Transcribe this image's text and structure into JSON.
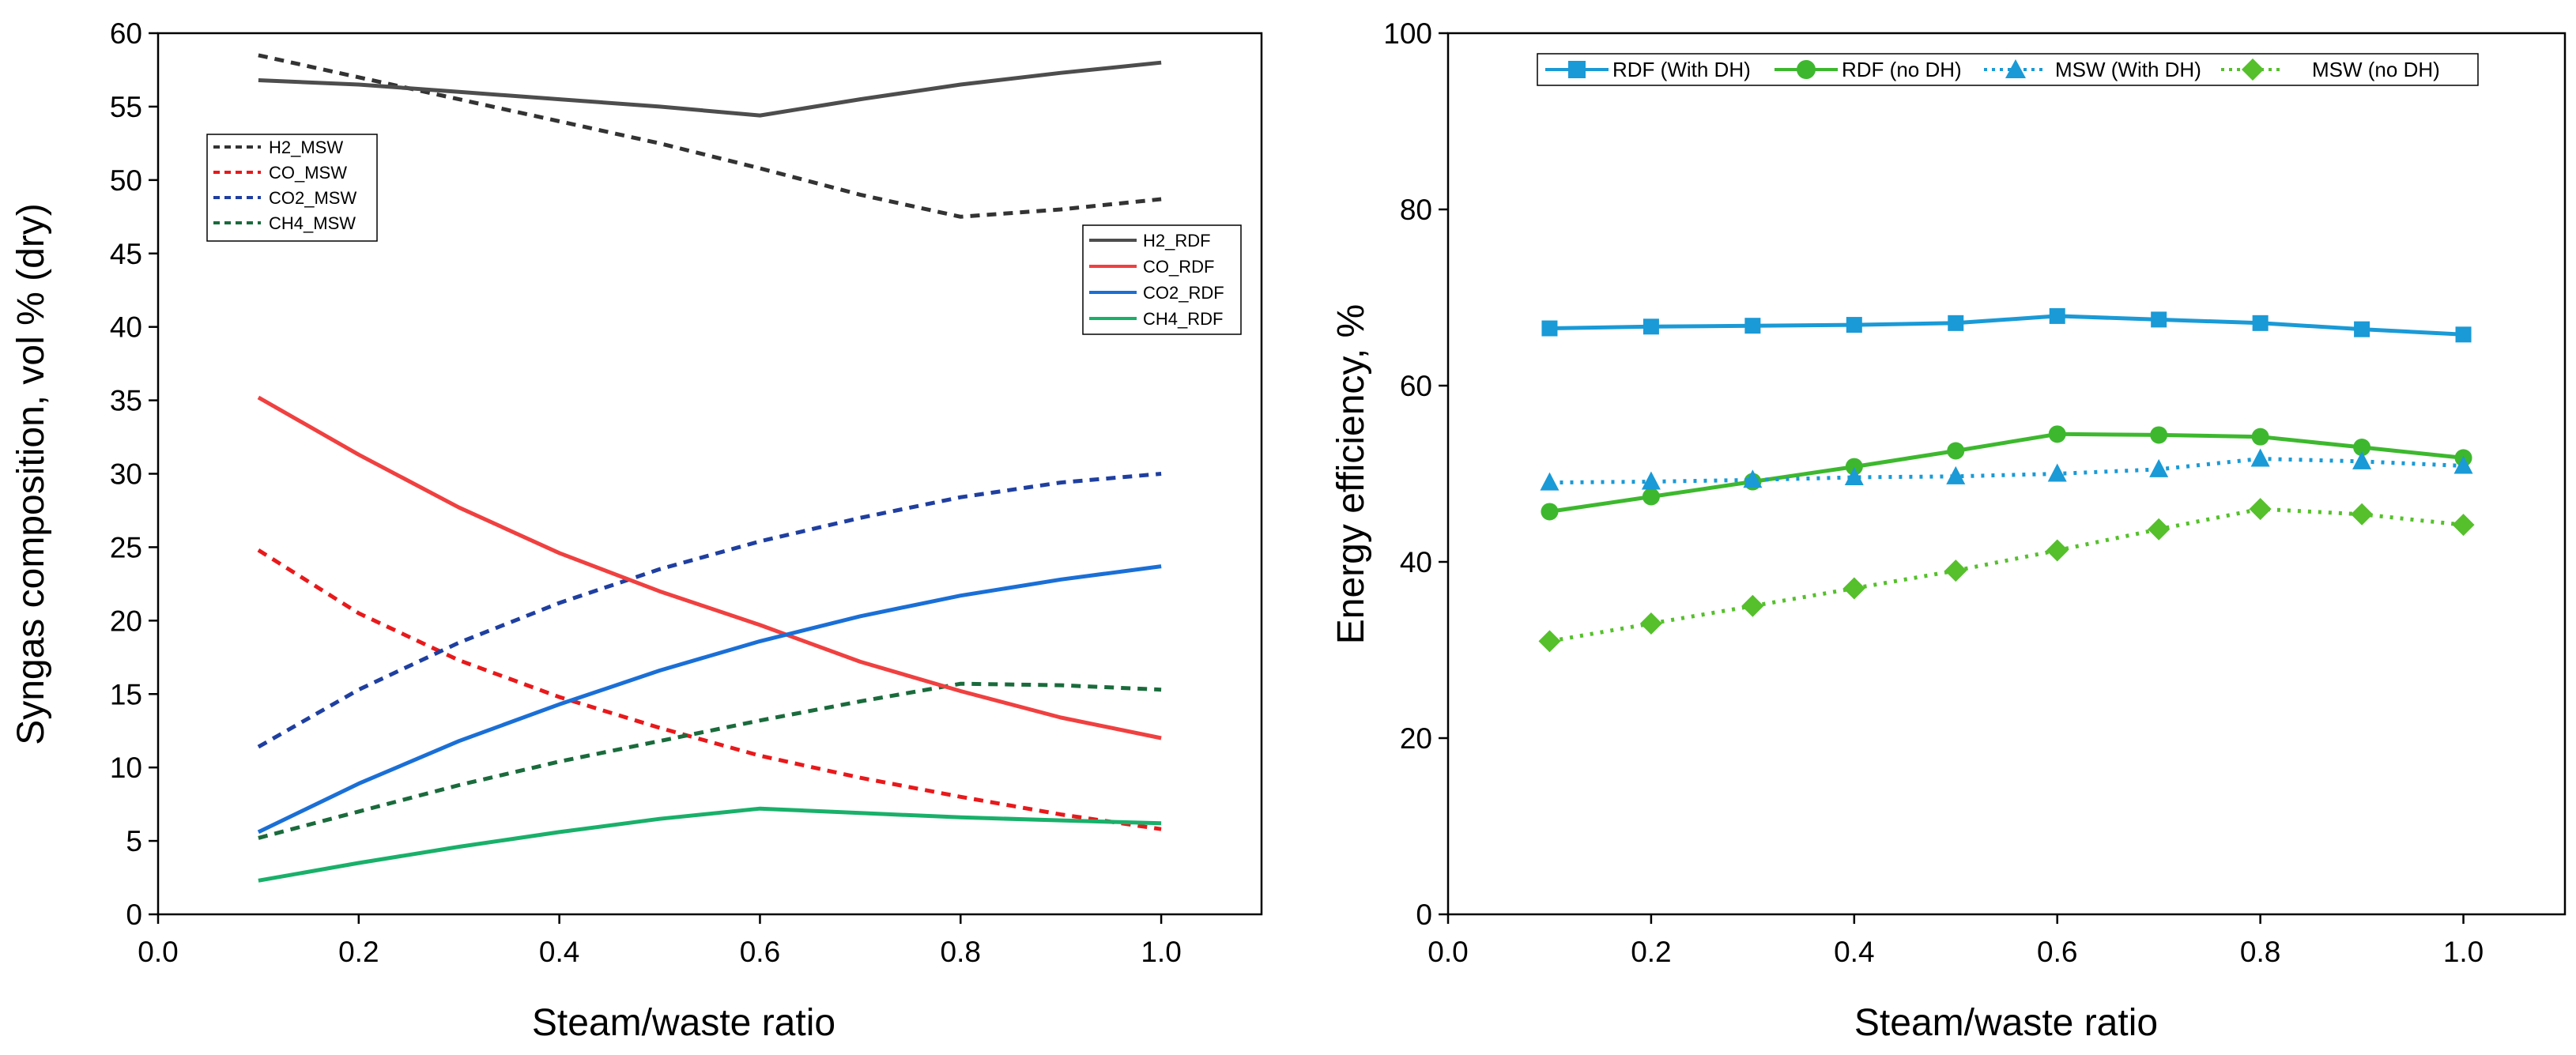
{
  "chart_data": [
    {
      "type": "line",
      "title": "",
      "xlabel": "Steam/waste ratio",
      "ylabel": "Syngas composition, vol % (dry)",
      "xlim": [
        0.0,
        1.1
      ],
      "ylim": [
        0,
        60
      ],
      "xticks": [
        "0.0",
        "0.2",
        "0.4",
        "0.6",
        "0.8",
        "1.0"
      ],
      "yticks": [
        "0",
        "5",
        "10",
        "15",
        "20",
        "25",
        "30",
        "35",
        "40",
        "45",
        "50",
        "55",
        "60"
      ],
      "grid": false,
      "legend_groups": [
        "left (upper-left)",
        "right (upper-right)"
      ],
      "series": [
        {
          "name": "H2_MSW",
          "color": "#333333",
          "dash": "dashed",
          "legend": "left",
          "x": [
            0.1,
            0.2,
            0.3,
            0.4,
            0.5,
            0.6,
            0.7,
            0.8,
            0.9,
            1.0
          ],
          "values": [
            58.5,
            57.0,
            55.5,
            54.0,
            52.5,
            50.8,
            49.0,
            47.5,
            48.0,
            48.7
          ]
        },
        {
          "name": "CO_MSW",
          "color": "#e8191b",
          "dash": "dashed",
          "legend": "left",
          "x": [
            0.1,
            0.2,
            0.3,
            0.4,
            0.5,
            0.6,
            0.7,
            0.8,
            0.9,
            1.0
          ],
          "values": [
            24.8,
            20.5,
            17.3,
            14.8,
            12.7,
            10.8,
            9.3,
            8.0,
            6.8,
            5.8
          ]
        },
        {
          "name": "CO2_MSW",
          "color": "#1f3fa0",
          "dash": "dashed",
          "legend": "left",
          "x": [
            0.1,
            0.2,
            0.3,
            0.4,
            0.5,
            0.6,
            0.7,
            0.8,
            0.9,
            1.0
          ],
          "values": [
            11.4,
            15.3,
            18.5,
            21.2,
            23.5,
            25.4,
            27.0,
            28.4,
            29.4,
            30.0
          ]
        },
        {
          "name": "CH4_MSW",
          "color": "#1a6b3c",
          "dash": "dashed",
          "legend": "left",
          "x": [
            0.1,
            0.2,
            0.3,
            0.4,
            0.5,
            0.6,
            0.7,
            0.8,
            0.9,
            1.0
          ],
          "values": [
            5.2,
            7.0,
            8.8,
            10.4,
            11.8,
            13.2,
            14.5,
            15.7,
            15.6,
            15.3
          ]
        },
        {
          "name": "H2_RDF",
          "color": "#4d4d4d",
          "dash": "solid",
          "legend": "right",
          "x": [
            0.1,
            0.2,
            0.3,
            0.4,
            0.5,
            0.6,
            0.7,
            0.8,
            0.9,
            1.0
          ],
          "values": [
            56.8,
            56.5,
            56.0,
            55.5,
            55.0,
            54.4,
            55.5,
            56.5,
            57.3,
            58.0
          ]
        },
        {
          "name": "CO_RDF",
          "color": "#f04040",
          "dash": "solid",
          "legend": "right",
          "x": [
            0.1,
            0.2,
            0.3,
            0.4,
            0.5,
            0.6,
            0.7,
            0.8,
            0.9,
            1.0
          ],
          "values": [
            35.2,
            31.3,
            27.7,
            24.6,
            22.0,
            19.7,
            17.2,
            15.2,
            13.4,
            12.0
          ]
        },
        {
          "name": "CO2_RDF",
          "color": "#1a6fd6",
          "dash": "solid",
          "legend": "right",
          "x": [
            0.1,
            0.2,
            0.3,
            0.4,
            0.5,
            0.6,
            0.7,
            0.8,
            0.9,
            1.0
          ],
          "values": [
            5.6,
            8.9,
            11.8,
            14.3,
            16.6,
            18.6,
            20.3,
            21.7,
            22.8,
            23.7
          ]
        },
        {
          "name": "CH4_RDF",
          "color": "#19b06a",
          "dash": "solid",
          "legend": "right",
          "x": [
            0.1,
            0.2,
            0.3,
            0.4,
            0.5,
            0.6,
            0.7,
            0.8,
            0.9,
            1.0
          ],
          "values": [
            2.3,
            3.5,
            4.6,
            5.6,
            6.5,
            7.2,
            6.9,
            6.6,
            6.4,
            6.2
          ]
        }
      ]
    },
    {
      "type": "line",
      "title": "",
      "xlabel": "Steam/waste ratio",
      "ylabel": "Energy efficiency, %",
      "xlim": [
        0.0,
        1.1
      ],
      "ylim": [
        0,
        100
      ],
      "xticks": [
        "0.0",
        "0.2",
        "0.4",
        "0.6",
        "0.8",
        "1.0"
      ],
      "yticks": [
        "0",
        "20",
        "40",
        "60",
        "80",
        "100"
      ],
      "grid": false,
      "legend_position": "top",
      "series": [
        {
          "name": "RDF (With DH)",
          "color": "#1a9ad6",
          "dash": "solid",
          "marker": "square",
          "x": [
            0.1,
            0.2,
            0.3,
            0.4,
            0.5,
            0.6,
            0.7,
            0.8,
            0.9,
            1.0
          ],
          "values": [
            66.5,
            66.7,
            66.8,
            66.9,
            67.1,
            67.9,
            67.5,
            67.1,
            66.4,
            65.8
          ]
        },
        {
          "name": "RDF (no DH)",
          "color": "#3db82e",
          "dash": "solid",
          "marker": "circle",
          "x": [
            0.1,
            0.2,
            0.3,
            0.4,
            0.5,
            0.6,
            0.7,
            0.8,
            0.9,
            1.0
          ],
          "values": [
            45.7,
            47.4,
            49.1,
            50.8,
            52.6,
            54.5,
            54.4,
            54.2,
            53.0,
            51.8
          ]
        },
        {
          "name": "MSW (With DH)",
          "color": "#1a9ad6",
          "dash": "dotted",
          "marker": "triangle",
          "x": [
            0.1,
            0.2,
            0.3,
            0.4,
            0.5,
            0.6,
            0.7,
            0.8,
            0.9,
            1.0
          ],
          "values": [
            49.0,
            49.1,
            49.3,
            49.6,
            49.7,
            50.0,
            50.5,
            51.7,
            51.4,
            50.9
          ]
        },
        {
          "name": "MSW (no DH)",
          "color": "#55c02b",
          "dash": "dotted",
          "marker": "diamond",
          "x": [
            0.1,
            0.2,
            0.3,
            0.4,
            0.5,
            0.6,
            0.7,
            0.8,
            0.9,
            1.0
          ],
          "values": [
            31.0,
            33.0,
            35.0,
            37.0,
            39.0,
            41.3,
            43.7,
            46.0,
            45.4,
            44.2
          ]
        }
      ]
    }
  ]
}
